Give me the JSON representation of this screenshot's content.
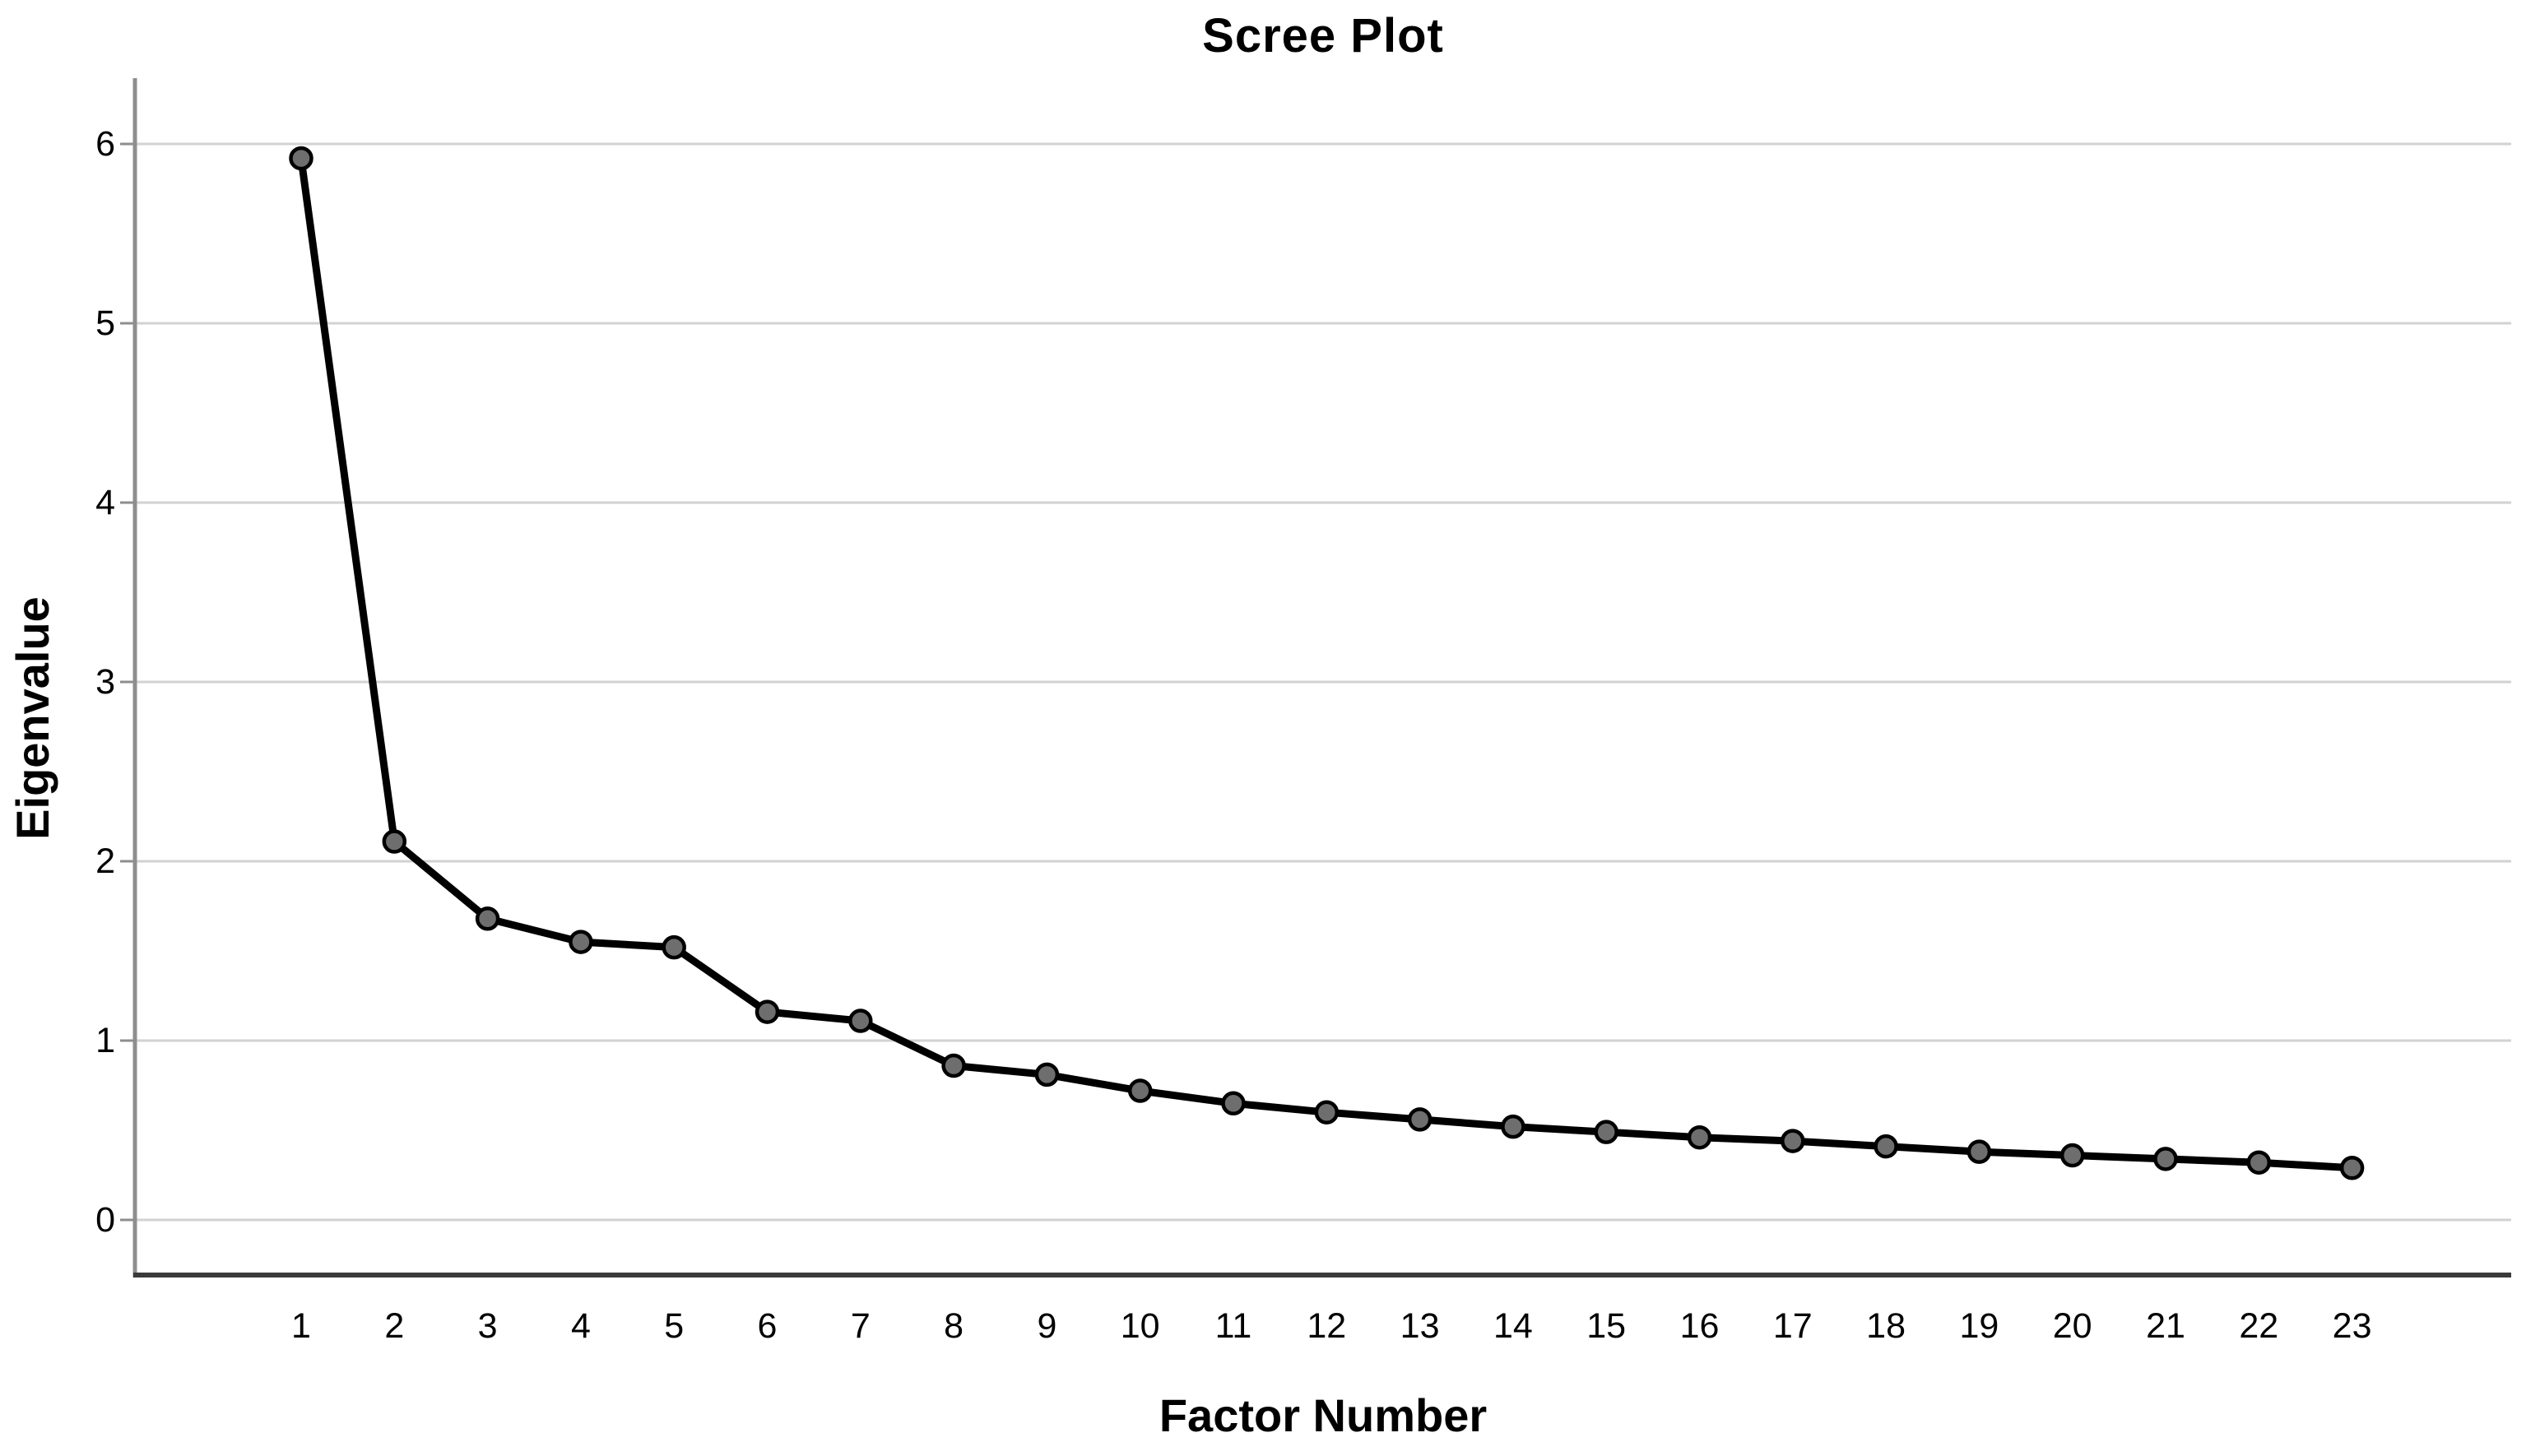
{
  "chart_data": {
    "type": "line",
    "title": "Scree Plot",
    "xlabel": "Factor Number",
    "ylabel": "Eigenvalue",
    "categories": [
      "1",
      "2",
      "3",
      "4",
      "5",
      "6",
      "7",
      "8",
      "9",
      "10",
      "11",
      "12",
      "13",
      "14",
      "15",
      "16",
      "17",
      "18",
      "19",
      "20",
      "21",
      "22",
      "23"
    ],
    "values": [
      5.92,
      2.11,
      1.68,
      1.55,
      1.52,
      1.16,
      1.11,
      0.86,
      0.81,
      0.72,
      0.65,
      0.6,
      0.56,
      0.52,
      0.49,
      0.46,
      0.44,
      0.41,
      0.38,
      0.36,
      0.34,
      0.32,
      0.29
    ],
    "yticks": [
      0,
      1,
      2,
      3,
      4,
      5,
      6
    ],
    "ylim": [
      -0.31,
      6.35
    ],
    "xlim_categories": [
      1,
      23
    ],
    "grid": "horizontal-only",
    "legend": "none",
    "colors": {
      "line": "#000000",
      "marker_fill": "#6e6e6e",
      "marker_stroke": "#000000",
      "gridline": "#d2d2d2",
      "y_axis_line": "#8e8e8e",
      "x_axis_line": "#3a3a3a",
      "background": "#ffffff",
      "text": "#000000"
    }
  }
}
